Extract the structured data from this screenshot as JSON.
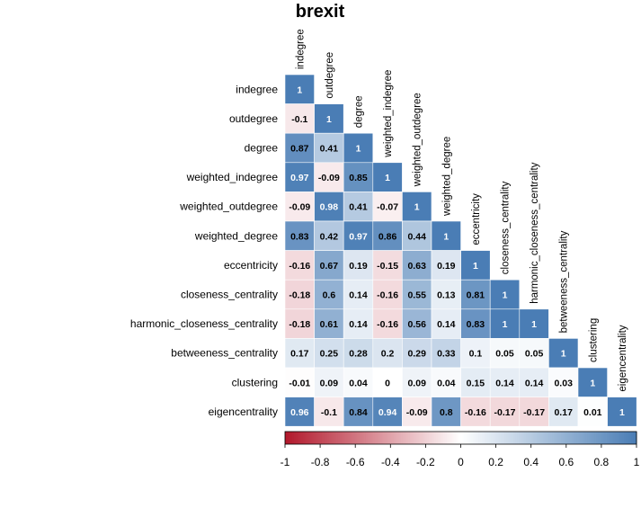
{
  "chart_data": {
    "type": "heatmap",
    "title": "brexit",
    "variables": [
      "indegree",
      "outdegree",
      "degree",
      "weighted_indegree",
      "weighted_outdegree",
      "weighted_degree",
      "eccentricity",
      "closeness_centrality",
      "harmonic_closeness_centrality",
      "betweeness_centrality",
      "clustering",
      "eigencentrality"
    ],
    "matrix_lower": [
      [
        "1"
      ],
      [
        "-0.1",
        "1"
      ],
      [
        "0.87",
        "0.41",
        "1"
      ],
      [
        "0.97",
        "-0.09",
        "0.85",
        "1"
      ],
      [
        "-0.09",
        "0.98",
        "0.41",
        "-0.07",
        "1"
      ],
      [
        "0.83",
        "0.42",
        "0.97",
        "0.86",
        "0.44",
        "1"
      ],
      [
        "-0.16",
        "0.67",
        "0.19",
        "-0.15",
        "0.63",
        "0.19",
        "1"
      ],
      [
        "-0.18",
        "0.6",
        "0.14",
        "-0.16",
        "0.55",
        "0.13",
        "0.81",
        "1"
      ],
      [
        "-0.18",
        "0.61",
        "0.14",
        "-0.16",
        "0.56",
        "0.14",
        "0.83",
        "1",
        "1"
      ],
      [
        "0.17",
        "0.25",
        "0.28",
        "0.2",
        "0.29",
        "0.33",
        "0.1",
        "0.05",
        "0.05",
        "1"
      ],
      [
        "-0.01",
        "0.09",
        "0.04",
        "0",
        "0.09",
        "0.04",
        "0.15",
        "0.14",
        "0.14",
        "0.03",
        "1"
      ],
      [
        "0.96",
        "-0.1",
        "0.84",
        "0.94",
        "-0.09",
        "0.8",
        "-0.16",
        "-0.17",
        "-0.17",
        "0.17",
        "0.01",
        "1"
      ]
    ],
    "colorbar": {
      "range": [
        -1,
        1
      ],
      "ticks": [
        "-1",
        "-0.8",
        "-0.6",
        "-0.4",
        "-0.2",
        "0",
        "0.2",
        "0.4",
        "0.6",
        "0.8",
        "1"
      ]
    },
    "colors": {
      "negative": "#B2182B",
      "neutral": "#FFFFFF",
      "positive": "#4A7DB5"
    }
  }
}
